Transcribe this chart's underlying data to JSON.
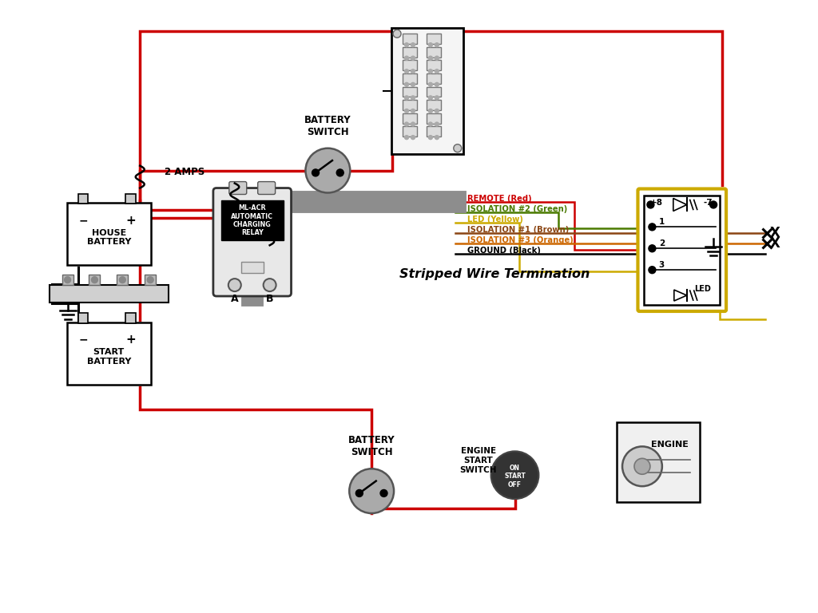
{
  "bg_color": "#ffffff",
  "wire_red": "#cc0000",
  "wire_black": "#000000",
  "wire_green": "#4a7a00",
  "wire_yellow": "#ccaa00",
  "wire_brown": "#8B4513",
  "wire_orange": "#cc6600",
  "wire_gray": "#888888",
  "title": "Stripped Wire Termination",
  "label_remote": "REMOTE (Red)",
  "label_iso2": "ISOLATION #2 (Green)",
  "label_led": "LED (Yellow)",
  "label_iso1": "ISOLATION #1 (Brown)",
  "label_iso3": "ISOLATION #3 (Orange)",
  "label_ground": "GROUND (Black)",
  "label_2amps": "2 AMPS",
  "label_battery_switch_top": "BATTERY\nSWITCH",
  "label_battery_switch_bot": "BATTERY\nSWITCH",
  "label_house_battery": "HOUSE\nBATTERY",
  "label_start_battery": "START\nBATTERY",
  "label_ml_acr": "ML-ACR\nAUTOMATIC\nCHARGING\nRELAY",
  "label_engine_start": "ENGINE\nSTART\nSWITCH",
  "label_engine": "ENGINE",
  "label_on": "ON",
  "label_start": "START",
  "label_off": "OFF",
  "label_A": "A",
  "label_B": "B",
  "label_plus8": "+8",
  "label_minus7": "-7",
  "label_led_box": "LED",
  "label_1": "1",
  "label_2": "2",
  "label_3": "3"
}
